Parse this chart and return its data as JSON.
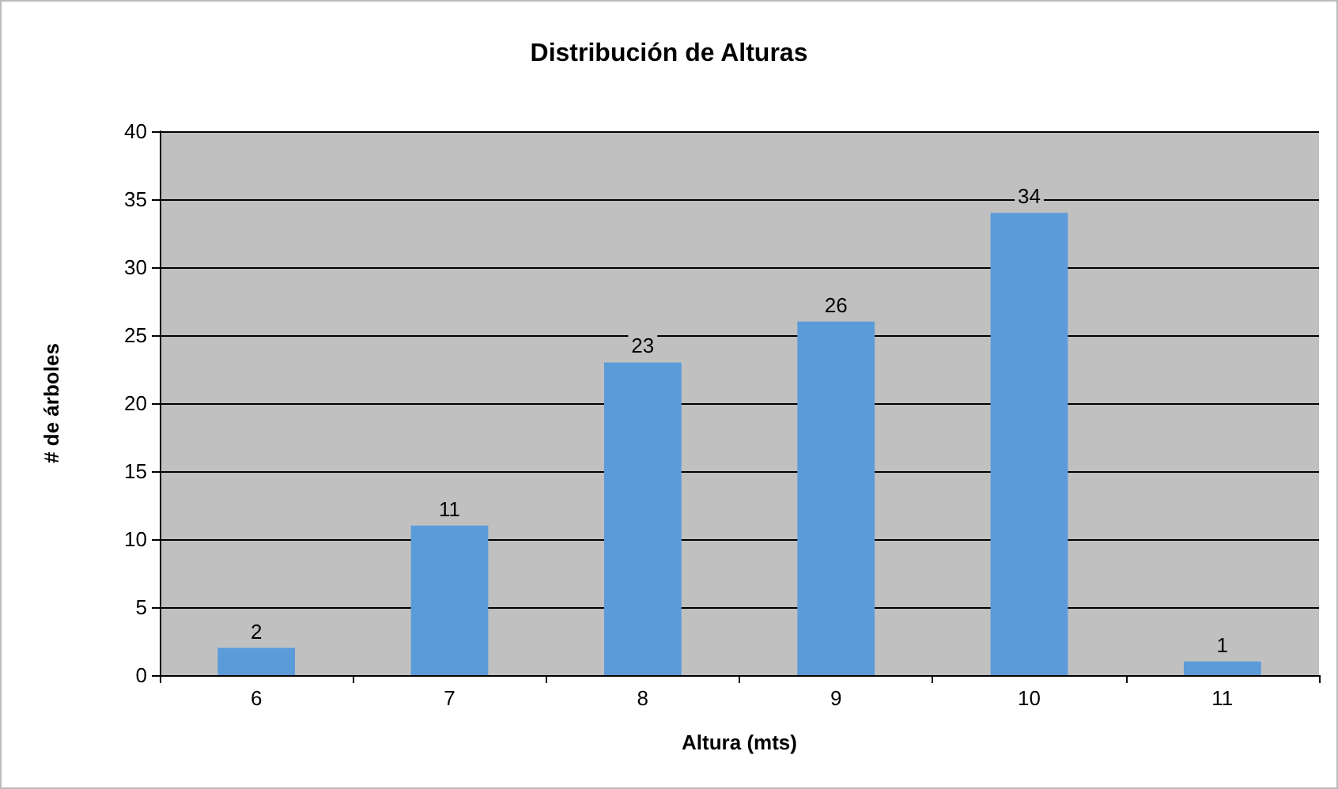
{
  "chart_data": {
    "type": "bar",
    "title": "Distribución de Alturas",
    "xlabel": "Altura (mts)",
    "ylabel": "# de árboles",
    "categories": [
      "6",
      "7",
      "8",
      "9",
      "10",
      "11"
    ],
    "values": [
      2,
      11,
      23,
      26,
      34,
      1
    ],
    "color": "#5b9bd9",
    "ylim": [
      0,
      40
    ],
    "yticks": [
      0,
      5,
      10,
      15,
      20,
      25,
      30,
      35,
      40
    ],
    "grid": "y",
    "data_labels": true
  }
}
